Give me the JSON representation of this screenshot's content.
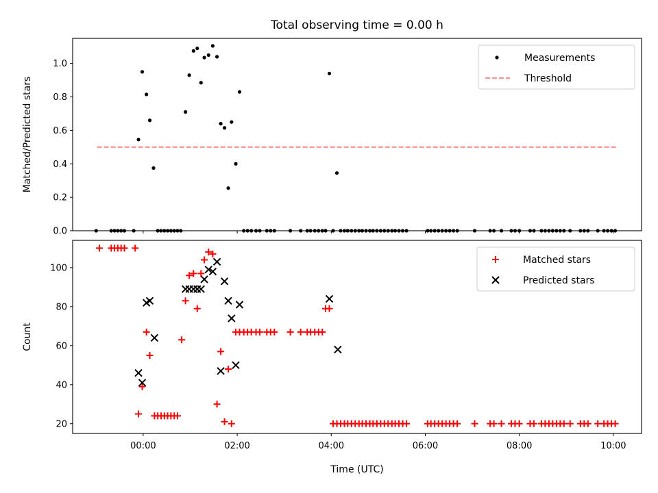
{
  "chart_data": [
    {
      "type": "scatter",
      "title": "Total observing time = 0.00 h",
      "ylabel": "Matched/Predicted stars",
      "xlabel": "",
      "xlim": [
        -1.5,
        10.6
      ],
      "ylim": [
        0.0,
        1.15
      ],
      "yticks": [
        0.0,
        0.2,
        0.4,
        0.6,
        0.8,
        1.0
      ],
      "yticklabels": [
        "0.0",
        "0.2",
        "0.4",
        "0.6",
        "0.8",
        "1.0"
      ],
      "xticks": [
        0,
        2,
        4,
        6,
        8,
        10
      ],
      "show_xticklabels": false,
      "legend_position": "top-right",
      "series": [
        {
          "name": "Measurements",
          "kind": "points",
          "color": "#000000",
          "x": [
            -1.0,
            -0.68,
            -0.61,
            -0.54,
            -0.47,
            -0.4,
            -0.2,
            -0.1,
            -0.02,
            0.07,
            0.14,
            0.22,
            0.31,
            0.38,
            0.45,
            0.52,
            0.59,
            0.66,
            0.73,
            0.8,
            0.9,
            0.98,
            1.07,
            1.15,
            1.23,
            1.3,
            1.39,
            1.48,
            1.57,
            1.65,
            1.73,
            1.81,
            1.88,
            1.97,
            2.05,
            2.14,
            2.22,
            2.3,
            2.4,
            2.48,
            2.63,
            2.71,
            2.79,
            3.13,
            3.35,
            3.49,
            3.56,
            3.65,
            3.73,
            3.81,
            3.88,
            3.96,
            4.04,
            4.12,
            4.2,
            4.28,
            4.35,
            4.43,
            4.51,
            4.59,
            4.66,
            4.74,
            4.82,
            4.89,
            4.97,
            5.05,
            5.13,
            5.21,
            5.29,
            5.36,
            5.44,
            5.52,
            5.6,
            6.05,
            6.12,
            6.2,
            6.28,
            6.36,
            6.44,
            6.52,
            6.6,
            6.68,
            7.05,
            7.38,
            7.46,
            7.62,
            7.83,
            7.91,
            8.0,
            8.23,
            8.31,
            8.47,
            8.55,
            8.63,
            8.71,
            8.79,
            8.87,
            8.95,
            9.08,
            9.3,
            9.38,
            9.46,
            9.67,
            9.8,
            9.88,
            9.96,
            10.04
          ],
          "y": [
            0,
            0,
            0,
            0,
            0,
            0,
            0,
            0.545,
            0.95,
            0.815,
            0.66,
            0.375,
            0,
            0,
            0,
            0,
            0,
            0,
            0,
            0,
            0.71,
            0.93,
            1.075,
            1.09,
            0.885,
            1.035,
            1.05,
            1.105,
            1.04,
            0.64,
            0.615,
            0.255,
            0.65,
            0.4,
            0.83,
            0,
            0,
            0,
            0,
            0,
            0,
            0,
            0,
            0,
            0,
            0,
            0,
            0,
            0,
            0,
            0,
            0.94,
            0,
            0.345,
            0,
            0,
            0,
            0,
            0,
            0,
            0,
            0,
            0,
            0,
            0,
            0,
            0,
            0,
            0,
            0,
            0,
            0,
            0,
            0,
            0,
            0,
            0,
            0,
            0,
            0,
            0,
            0,
            0,
            0,
            0,
            0,
            0,
            0,
            0,
            0,
            0,
            0,
            0,
            0,
            0,
            0,
            0,
            0,
            0,
            0,
            0,
            0,
            0,
            0,
            0,
            0,
            0
          ]
        },
        {
          "name": "Threshold",
          "kind": "dashed-line",
          "color": "#ff7f7f",
          "x": [
            -0.98,
            10.1
          ],
          "y": [
            0.5,
            0.5
          ]
        }
      ]
    },
    {
      "type": "scatter",
      "title": "",
      "ylabel": "Count",
      "xlabel": "Time (UTC)",
      "xlim": [
        -1.5,
        10.6
      ],
      "ylim": [
        15,
        114
      ],
      "yticks": [
        20,
        40,
        60,
        80,
        100
      ],
      "yticklabels": [
        "20",
        "40",
        "60",
        "80",
        "100"
      ],
      "xticks": [
        0,
        2,
        4,
        6,
        8,
        10
      ],
      "xticklabels": [
        "00:00",
        "02:00",
        "04:00",
        "06:00",
        "08:00",
        "10:00"
      ],
      "legend_position": "top-right",
      "series": [
        {
          "name": "Matched stars",
          "kind": "plus",
          "color": "#ff0000",
          "x": [
            -0.93,
            -0.68,
            -0.61,
            -0.54,
            -0.47,
            -0.4,
            -0.17,
            -0.1,
            -0.02,
            0.07,
            0.14,
            0.24,
            0.31,
            0.38,
            0.45,
            0.52,
            0.59,
            0.66,
            0.73,
            0.82,
            0.9,
            0.98,
            1.07,
            1.15,
            1.23,
            1.3,
            1.39,
            1.48,
            1.57,
            1.65,
            1.73,
            1.81,
            1.88,
            1.97,
            2.05,
            2.14,
            2.22,
            2.3,
            2.4,
            2.48,
            2.63,
            2.71,
            2.79,
            3.13,
            3.35,
            3.49,
            3.56,
            3.65,
            3.73,
            3.81,
            3.88,
            3.96,
            4.04,
            4.12,
            4.2,
            4.28,
            4.35,
            4.43,
            4.51,
            4.59,
            4.66,
            4.74,
            4.82,
            4.89,
            4.97,
            5.05,
            5.13,
            5.21,
            5.29,
            5.36,
            5.44,
            5.52,
            5.6,
            6.05,
            6.12,
            6.2,
            6.28,
            6.36,
            6.44,
            6.52,
            6.6,
            6.68,
            7.05,
            7.38,
            7.46,
            7.62,
            7.83,
            7.91,
            8.0,
            8.23,
            8.31,
            8.47,
            8.55,
            8.63,
            8.71,
            8.79,
            8.87,
            8.95,
            9.08,
            9.3,
            9.38,
            9.46,
            9.67,
            9.8,
            9.88,
            9.96,
            10.04
          ],
          "y": [
            110,
            110,
            110,
            110,
            110,
            110,
            110,
            25,
            39,
            67,
            55,
            24,
            24,
            24,
            24,
            24,
            24,
            24,
            24,
            63,
            83,
            96,
            97,
            79,
            97,
            104,
            108,
            107,
            30,
            57,
            21,
            48,
            20,
            67,
            67,
            67,
            67,
            67,
            67,
            67,
            67,
            67,
            67,
            67,
            67,
            67,
            67,
            67,
            67,
            67,
            79,
            79,
            20,
            20,
            20,
            20,
            20,
            20,
            20,
            20,
            20,
            20,
            20,
            20,
            20,
            20,
            20,
            20,
            20,
            20,
            20,
            20,
            20,
            20,
            20,
            20,
            20,
            20,
            20,
            20,
            20,
            20,
            20,
            20,
            20,
            20,
            20,
            20,
            20,
            20,
            20,
            20,
            20,
            20,
            20,
            20,
            20,
            20,
            20,
            20,
            20,
            20,
            20,
            20,
            20,
            20,
            20
          ]
        },
        {
          "name": "Predicted stars",
          "kind": "x",
          "color": "#000000",
          "x": [
            -0.1,
            -0.02,
            0.07,
            0.14,
            0.24,
            0.9,
            0.98,
            1.07,
            1.15,
            1.23,
            1.3,
            1.39,
            1.48,
            1.57,
            1.65,
            1.73,
            1.81,
            1.88,
            1.97,
            2.05,
            3.96,
            4.14
          ],
          "y": [
            46,
            41,
            82,
            83,
            64,
            89,
            89,
            89,
            89,
            89,
            94,
            99,
            98,
            103,
            47,
            93,
            83,
            74,
            50,
            81,
            84,
            58
          ]
        }
      ]
    }
  ]
}
